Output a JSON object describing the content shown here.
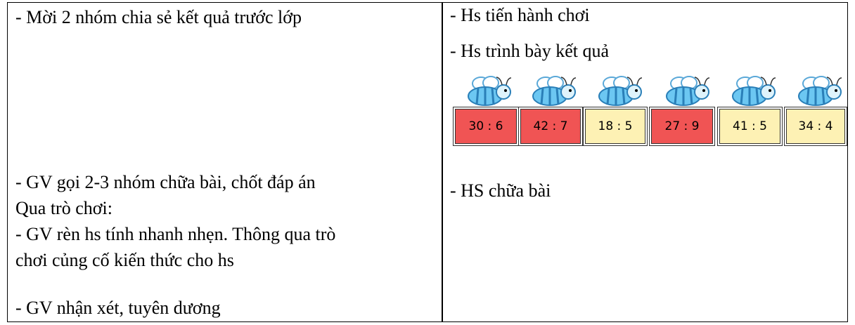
{
  "table": {
    "rows": [
      {
        "left": [
          "- Mời 2 nhóm chia sẻ kết quả trước lớp"
        ],
        "right": [
          "- Hs tiến hành chơi",
          "- Hs trình bày kết quả"
        ],
        "cards": [
          "30 : 6",
          "42 : 7",
          "18 : 5",
          "27 : 9",
          "41 : 5",
          "34 : 4"
        ]
      },
      {
        "left": [
          "- GV gọi 2-3 nhóm chữa bài, chốt đáp án",
          "Qua trò chơi:",
          "- GV rèn hs tính nhanh nhẹn. Thông qua trò",
          "chơi củng cố kiến thức cho hs",
          "- GV nhận xét, tuyên dương"
        ],
        "right": [
          "- HS chữa bài"
        ]
      }
    ]
  }
}
